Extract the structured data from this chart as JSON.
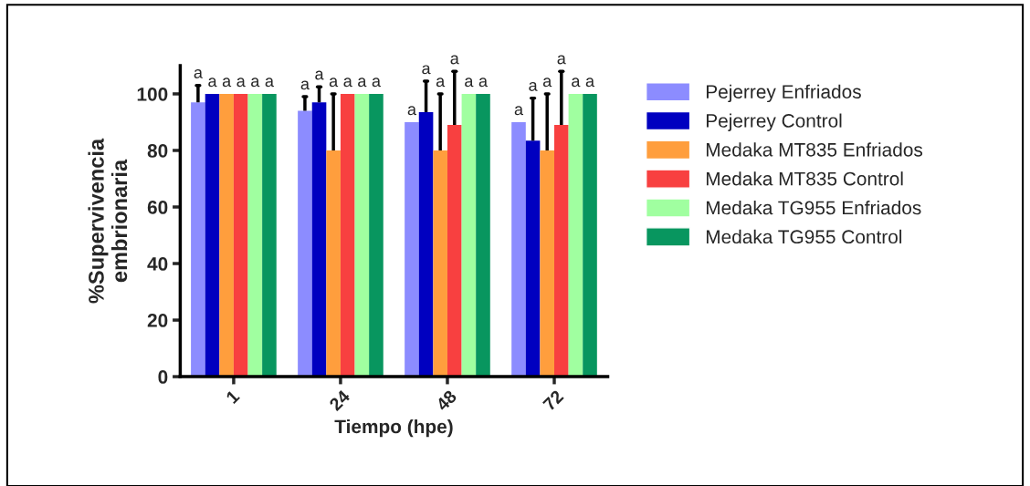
{
  "chart_data": {
    "type": "bar",
    "xlabel": "Tiempo (hpe)",
    "ylabel": "%Supervivencia\nembrionaria",
    "categories": [
      "1",
      "24",
      "48",
      "72"
    ],
    "ylim": [
      0,
      110
    ],
    "yticks": [
      0,
      20,
      40,
      60,
      80,
      100
    ],
    "grid": false,
    "legend": "right",
    "series": [
      {
        "name": "Pejerrey Enfriados",
        "color": "#8c8cff",
        "values": [
          97,
          94,
          90,
          90
        ],
        "errors": [
          [
            97,
            103
          ],
          [
            94,
            99
          ],
          null,
          null
        ]
      },
      {
        "name": "Pejerrey Control",
        "color": "#0000c0",
        "values": [
          100,
          97,
          93.5,
          83.5
        ],
        "errors": [
          null,
          [
            97,
            102.5
          ],
          [
            93.5,
            104.5
          ],
          [
            83.5,
            98.5
          ]
        ]
      },
      {
        "name": "Medaka MT835 Enfriados",
        "color": "#ff9e3d",
        "values": [
          100,
          80,
          80,
          80
        ],
        "errors": [
          null,
          [
            80,
            100
          ],
          [
            80,
            100
          ],
          [
            80,
            100
          ]
        ]
      },
      {
        "name": "Medaka MT835 Control",
        "color": "#f84040",
        "values": [
          100,
          100,
          89,
          89
        ],
        "errors": [
          null,
          null,
          [
            89,
            108
          ],
          [
            89,
            108
          ]
        ]
      },
      {
        "name": "Medaka TG955 Enfriados",
        "color": "#a0ffa0",
        "values": [
          100,
          100,
          100,
          100
        ]
      },
      {
        "name": "Medaka TG955 Control",
        "color": "#08965f",
        "values": [
          100,
          100,
          100,
          100
        ]
      }
    ],
    "annotations": [
      "a",
      "a",
      "a",
      "a",
      "a",
      "a",
      "a",
      "a",
      "a",
      "a",
      "a",
      "a",
      "a",
      "a",
      "a",
      "a",
      "a",
      "a",
      "a",
      "a",
      "a",
      "a",
      "a",
      "a"
    ]
  }
}
